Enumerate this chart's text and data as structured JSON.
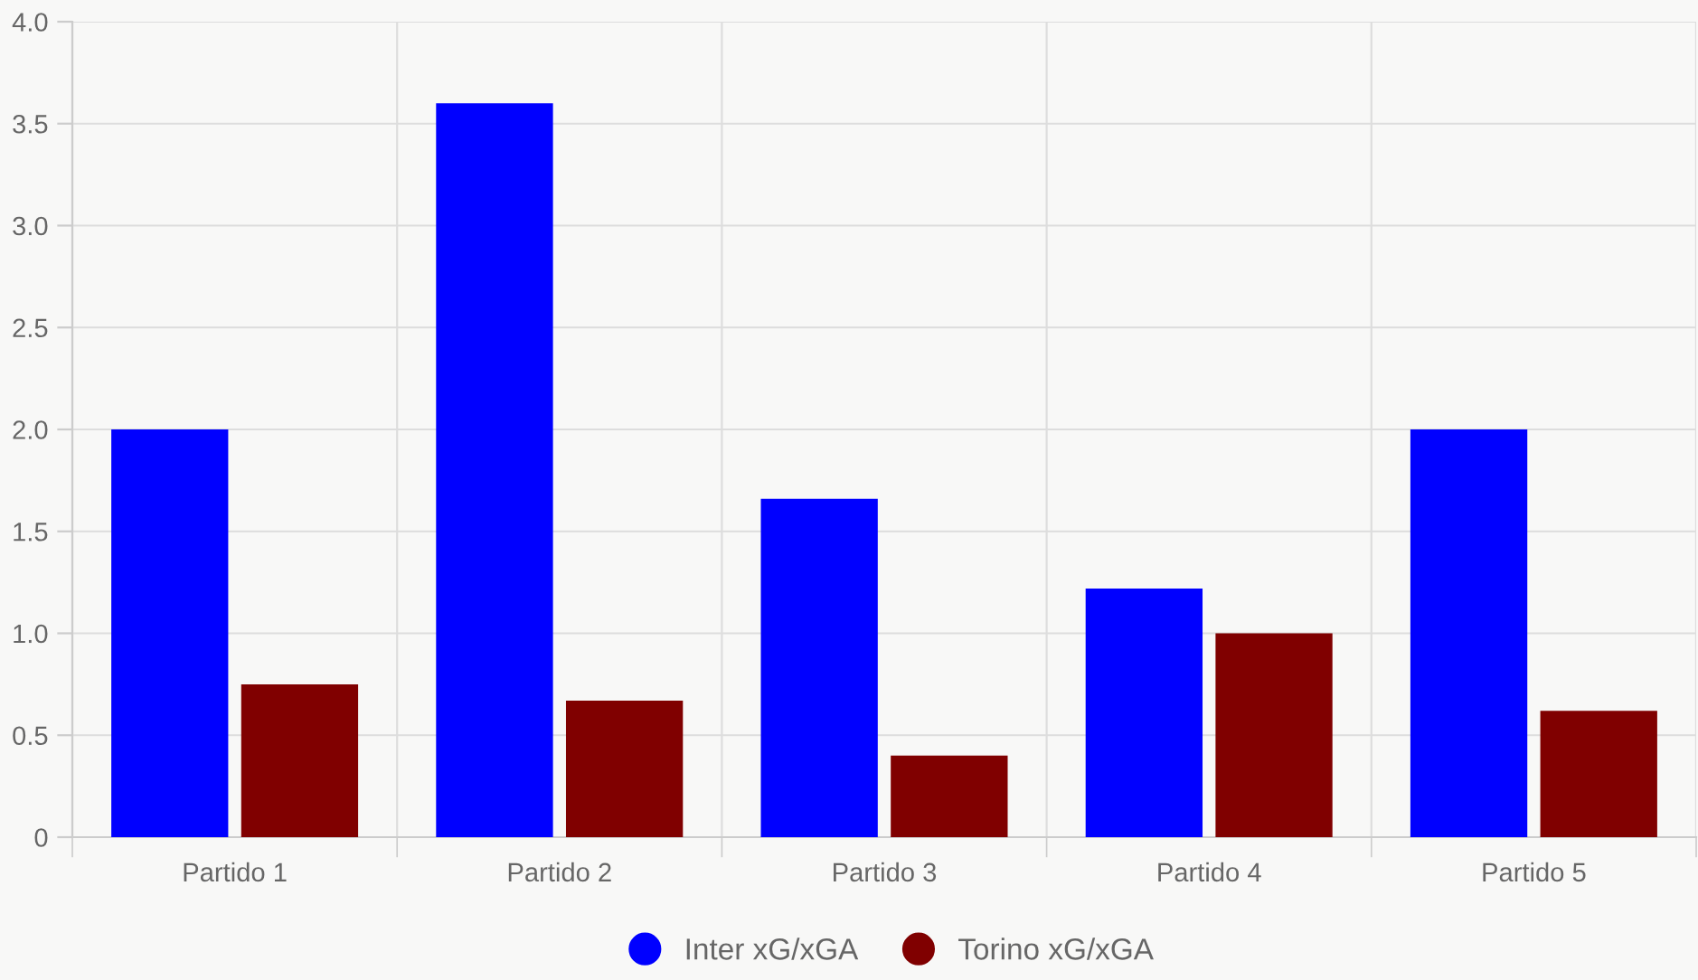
{
  "chart_data": {
    "type": "bar",
    "categories": [
      "Partido 1",
      "Partido 2",
      "Partido 3",
      "Partido 4",
      "Partido 5"
    ],
    "series": [
      {
        "name": "Inter xG/xGA",
        "color": "#0000ff",
        "values": [
          2.0,
          3.6,
          1.66,
          1.22,
          2.0
        ]
      },
      {
        "name": "Torino xG/xGA",
        "color": "#800000",
        "values": [
          0.75,
          0.67,
          0.4,
          1.0,
          0.62
        ]
      }
    ],
    "ylim": [
      0,
      4.0
    ],
    "yticks": [
      {
        "value": 0,
        "label": "0"
      },
      {
        "value": 0.5,
        "label": "0.5"
      },
      {
        "value": 1.0,
        "label": "1.0"
      },
      {
        "value": 1.5,
        "label": "1.5"
      },
      {
        "value": 2.0,
        "label": "2.0"
      },
      {
        "value": 2.5,
        "label": "2.5"
      },
      {
        "value": 3.0,
        "label": "3.0"
      },
      {
        "value": 3.5,
        "label": "3.5"
      },
      {
        "value": 4.0,
        "label": "4.0"
      }
    ],
    "grid": true,
    "legend": "bottom"
  }
}
